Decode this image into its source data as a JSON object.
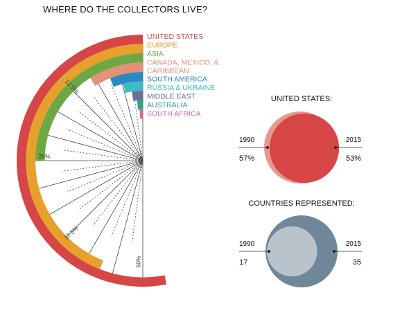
{
  "title": "WHERE DO THE COLLECTORS LIVE?",
  "chart_data": [
    {
      "type": "radial-bar",
      "unit": "%",
      "categories": [
        "UNITED STATES",
        "EUROPE",
        "ASIA",
        "CANADA, MEXICO, & CARIBBEAN",
        "SOUTH AMERICA",
        "RUSSIA & UKRAINE",
        "MIDDLE EAST",
        "AUSTRALIA",
        "SOUTH AFRICA"
      ],
      "values": [
        53,
        44,
        25,
        9,
        6,
        4,
        2.5,
        1.5,
        1
      ],
      "colors": [
        "#d64646",
        "#e8a02c",
        "#6ea844",
        "#e59078",
        "#2a89c3",
        "#3dbcc6",
        "#6c6e9c",
        "#2ea57c",
        "#d468a8"
      ],
      "axis_max": 50,
      "tick_labels": [
        {
          "value": 12.5,
          "label": "12.5%"
        },
        {
          "value": 25,
          "label": "25%"
        },
        {
          "value": 37.5,
          "label": "37.5%"
        },
        {
          "value": 50,
          "label": "50%"
        }
      ],
      "legend_position": "top-right"
    },
    {
      "type": "proportional-circles",
      "title": "UNITED STATES:",
      "left": {
        "year": "1990",
        "value_label": "57%",
        "value": 57
      },
      "right": {
        "year": "2015",
        "value_label": "53%",
        "value": 53
      },
      "colors": {
        "1990": "#e8978c",
        "2015": "#d64646"
      }
    },
    {
      "type": "proportional-circles",
      "title": "COUNTRIES REPRESENTED:",
      "left": {
        "year": "1990",
        "value_label": "17",
        "value": 17
      },
      "right": {
        "year": "2015",
        "value_label": "35",
        "value": 35
      },
      "colors": {
        "1990": "#b9c3cc",
        "2015": "#6f8799"
      }
    }
  ]
}
